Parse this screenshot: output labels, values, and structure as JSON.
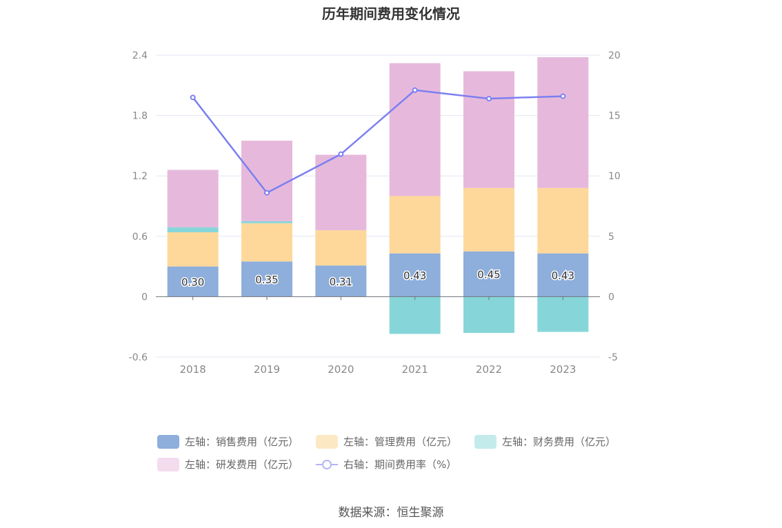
{
  "title": "历年期间费用变化情况",
  "source": "数据来源：恒生聚源",
  "colors": {
    "sales": "#8eaedb",
    "admin": "#fed89a",
    "finance": "#86d6d9",
    "rd": "#e6b9dc",
    "rate": "#7b7ff0"
  },
  "legend": {
    "sales": "左轴：销售费用（亿元）",
    "admin": "左轴：管理费用（亿元）",
    "finance": "左轴：财务费用（亿元）",
    "rd": "左轴：研发费用（亿元）",
    "rate": "右轴：期间费用率（%）"
  },
  "chart_data": {
    "type": "bar",
    "title": "历年期间费用变化情况",
    "categories": [
      "2018",
      "2019",
      "2020",
      "2021",
      "2022",
      "2023"
    ],
    "y_left": {
      "min": -0.6,
      "max": 2.4,
      "ticks": [
        "-0.6",
        "0",
        "0.6",
        "1.2",
        "1.8",
        "2.4"
      ]
    },
    "y_right": {
      "min": -5,
      "max": 20,
      "ticks": [
        "-5",
        "0",
        "5",
        "10",
        "15",
        "20"
      ]
    },
    "series": [
      {
        "name": "左轴：销售费用（亿元）",
        "axis": "left",
        "stacked": true,
        "values": [
          0.3,
          0.35,
          0.31,
          0.43,
          0.45,
          0.43
        ],
        "labels": [
          "0.30",
          "0.35",
          "0.31",
          "0.43",
          "0.45",
          "0.43"
        ]
      },
      {
        "name": "左轴：管理费用（亿元）",
        "axis": "left",
        "stacked": true,
        "values": [
          0.34,
          0.38,
          0.35,
          0.57,
          0.63,
          0.65
        ]
      },
      {
        "name": "左轴：财务费用（亿元）",
        "axis": "left",
        "stacked": true,
        "values": [
          0.05,
          0.02,
          0.0,
          -0.37,
          -0.36,
          -0.35
        ]
      },
      {
        "name": "左轴：研发费用（亿元）",
        "axis": "left",
        "stacked": true,
        "values": [
          0.57,
          0.8,
          0.75,
          1.32,
          1.16,
          1.3
        ]
      },
      {
        "name": "右轴：期间费用率（%）",
        "axis": "right",
        "type": "line",
        "values": [
          16.5,
          8.6,
          11.8,
          17.1,
          16.4,
          16.6
        ]
      }
    ],
    "grid": true,
    "legend_position": "bottom"
  }
}
